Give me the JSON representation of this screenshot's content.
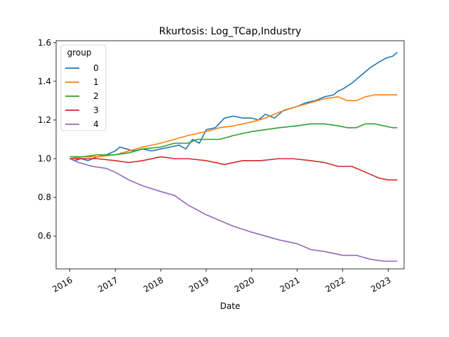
{
  "chart_data": {
    "type": "line",
    "title": "Rkurtosis: Log_TCap,Industry",
    "xlabel": "Date",
    "ylabel": "",
    "x_ticks": [
      "2016",
      "2017",
      "2018",
      "2019",
      "2020",
      "2021",
      "2022",
      "2023"
    ],
    "x_range": [
      2015.7,
      2023.35
    ],
    "y_ticks": [
      "0.6",
      "0.8",
      "1.0",
      "1.2",
      "1.4",
      "1.6"
    ],
    "ylim": [
      0.43,
      1.61
    ],
    "grid": false,
    "legend": {
      "title": "group",
      "placement": "top-left"
    },
    "series": [
      {
        "name": "0",
        "color": "#1f77b4",
        "points": [
          [
            2016.0,
            1.0
          ],
          [
            2016.1,
            0.99
          ],
          [
            2016.25,
            1.0
          ],
          [
            2016.4,
            0.99
          ],
          [
            2016.6,
            1.01
          ],
          [
            2016.8,
            1.02
          ],
          [
            2017.0,
            1.04
          ],
          [
            2017.1,
            1.06
          ],
          [
            2017.25,
            1.05
          ],
          [
            2017.4,
            1.04
          ],
          [
            2017.6,
            1.05
          ],
          [
            2017.8,
            1.04
          ],
          [
            2018.0,
            1.05
          ],
          [
            2018.2,
            1.06
          ],
          [
            2018.4,
            1.07
          ],
          [
            2018.55,
            1.05
          ],
          [
            2018.7,
            1.1
          ],
          [
            2018.85,
            1.08
          ],
          [
            2019.0,
            1.15
          ],
          [
            2019.2,
            1.16
          ],
          [
            2019.4,
            1.21
          ],
          [
            2019.6,
            1.22
          ],
          [
            2019.8,
            1.21
          ],
          [
            2020.0,
            1.21
          ],
          [
            2020.15,
            1.2
          ],
          [
            2020.3,
            1.23
          ],
          [
            2020.5,
            1.21
          ],
          [
            2020.7,
            1.25
          ],
          [
            2020.85,
            1.26
          ],
          [
            2021.0,
            1.27
          ],
          [
            2021.2,
            1.29
          ],
          [
            2021.4,
            1.3
          ],
          [
            2021.6,
            1.32
          ],
          [
            2021.8,
            1.33
          ],
          [
            2021.9,
            1.35
          ],
          [
            2022.0,
            1.36
          ],
          [
            2022.2,
            1.39
          ],
          [
            2022.4,
            1.43
          ],
          [
            2022.6,
            1.47
          ],
          [
            2022.8,
            1.5
          ],
          [
            2022.95,
            1.52
          ],
          [
            2023.1,
            1.53
          ],
          [
            2023.2,
            1.55
          ]
        ]
      },
      {
        "name": "1",
        "color": "#ff7f0e",
        "points": [
          [
            2016.0,
            1.0
          ],
          [
            2016.3,
            1.01
          ],
          [
            2016.6,
            1.01
          ],
          [
            2017.0,
            1.02
          ],
          [
            2017.3,
            1.04
          ],
          [
            2017.6,
            1.06
          ],
          [
            2018.0,
            1.08
          ],
          [
            2018.3,
            1.1
          ],
          [
            2018.6,
            1.12
          ],
          [
            2019.0,
            1.14
          ],
          [
            2019.3,
            1.16
          ],
          [
            2019.6,
            1.17
          ],
          [
            2020.0,
            1.19
          ],
          [
            2020.3,
            1.21
          ],
          [
            2020.6,
            1.24
          ],
          [
            2021.0,
            1.27
          ],
          [
            2021.3,
            1.29
          ],
          [
            2021.6,
            1.31
          ],
          [
            2021.9,
            1.32
          ],
          [
            2022.1,
            1.3
          ],
          [
            2022.3,
            1.3
          ],
          [
            2022.5,
            1.32
          ],
          [
            2022.7,
            1.33
          ],
          [
            2022.9,
            1.33
          ],
          [
            2023.1,
            1.33
          ],
          [
            2023.2,
            1.33
          ]
        ]
      },
      {
        "name": "2",
        "color": "#2ca02c",
        "points": [
          [
            2016.0,
            1.01
          ],
          [
            2016.3,
            1.01
          ],
          [
            2016.6,
            1.02
          ],
          [
            2017.0,
            1.02
          ],
          [
            2017.3,
            1.03
          ],
          [
            2017.6,
            1.05
          ],
          [
            2018.0,
            1.06
          ],
          [
            2018.3,
            1.08
          ],
          [
            2018.6,
            1.08
          ],
          [
            2018.8,
            1.1
          ],
          [
            2019.0,
            1.1
          ],
          [
            2019.3,
            1.1
          ],
          [
            2019.6,
            1.12
          ],
          [
            2020.0,
            1.14
          ],
          [
            2020.3,
            1.15
          ],
          [
            2020.6,
            1.16
          ],
          [
            2021.0,
            1.17
          ],
          [
            2021.3,
            1.18
          ],
          [
            2021.6,
            1.18
          ],
          [
            2021.9,
            1.17
          ],
          [
            2022.1,
            1.16
          ],
          [
            2022.3,
            1.16
          ],
          [
            2022.5,
            1.18
          ],
          [
            2022.7,
            1.18
          ],
          [
            2022.9,
            1.17
          ],
          [
            2023.1,
            1.16
          ],
          [
            2023.2,
            1.16
          ]
        ]
      },
      {
        "name": "3",
        "color": "#d62728",
        "points": [
          [
            2016.0,
            1.0
          ],
          [
            2016.3,
            1.0
          ],
          [
            2016.6,
            1.0
          ],
          [
            2017.0,
            0.99
          ],
          [
            2017.3,
            0.98
          ],
          [
            2017.6,
            0.99
          ],
          [
            2018.0,
            1.01
          ],
          [
            2018.3,
            1.0
          ],
          [
            2018.6,
            1.0
          ],
          [
            2019.0,
            0.99
          ],
          [
            2019.4,
            0.97
          ],
          [
            2019.8,
            0.99
          ],
          [
            2020.2,
            0.99
          ],
          [
            2020.6,
            1.0
          ],
          [
            2020.9,
            1.0
          ],
          [
            2021.3,
            0.99
          ],
          [
            2021.6,
            0.98
          ],
          [
            2021.9,
            0.96
          ],
          [
            2022.2,
            0.96
          ],
          [
            2022.5,
            0.93
          ],
          [
            2022.8,
            0.9
          ],
          [
            2023.0,
            0.89
          ],
          [
            2023.2,
            0.89
          ]
        ]
      },
      {
        "name": "4",
        "color": "#9467bd",
        "points": [
          [
            2016.0,
            1.0
          ],
          [
            2016.2,
            0.98
          ],
          [
            2016.5,
            0.96
          ],
          [
            2016.8,
            0.95
          ],
          [
            2017.0,
            0.93
          ],
          [
            2017.3,
            0.89
          ],
          [
            2017.6,
            0.86
          ],
          [
            2018.0,
            0.83
          ],
          [
            2018.3,
            0.81
          ],
          [
            2018.6,
            0.76
          ],
          [
            2019.0,
            0.71
          ],
          [
            2019.3,
            0.68
          ],
          [
            2019.6,
            0.65
          ],
          [
            2020.0,
            0.62
          ],
          [
            2020.3,
            0.6
          ],
          [
            2020.6,
            0.58
          ],
          [
            2021.0,
            0.56
          ],
          [
            2021.3,
            0.53
          ],
          [
            2021.6,
            0.52
          ],
          [
            2022.0,
            0.5
          ],
          [
            2022.3,
            0.5
          ],
          [
            2022.6,
            0.48
          ],
          [
            2022.9,
            0.47
          ],
          [
            2023.2,
            0.47
          ]
        ]
      }
    ]
  }
}
